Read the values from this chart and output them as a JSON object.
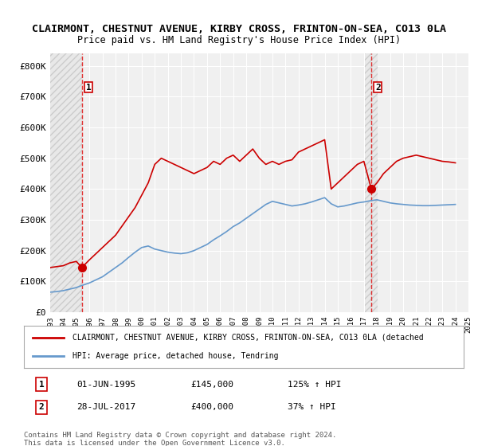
{
  "title_line1": "CLAIRMONT, CHESTNUT AVENUE, KIRBY CROSS, FRINTON-ON-SEA, CO13 0LA",
  "title_line2": "Price paid vs. HM Land Registry's House Price Index (HPI)",
  "ylabel": "",
  "bg_color": "#ffffff",
  "plot_bg_color": "#f0f0f0",
  "hatch_color": "#d8d8d8",
  "grid_color": "#ffffff",
  "red_line_color": "#cc0000",
  "blue_line_color": "#6699cc",
  "marker1_date_idx": 2.42,
  "marker1_value": 145000,
  "marker2_date_idx": 24.57,
  "marker2_value": 400000,
  "ylim_min": 0,
  "ylim_max": 840000,
  "ytick_values": [
    0,
    100000,
    200000,
    300000,
    400000,
    500000,
    600000,
    700000,
    800000
  ],
  "ytick_labels": [
    "£0",
    "£100K",
    "£200K",
    "£300K",
    "£400K",
    "£500K",
    "£600K",
    "£700K",
    "£800K"
  ],
  "legend_entry1": "CLAIRMONT, CHESTNUT AVENUE, KIRBY CROSS, FRINTON-ON-SEA, CO13 0LA (detached",
  "legend_entry2": "HPI: Average price, detached house, Tendring",
  "annotation1_label": "1",
  "annotation1_date": "01-JUN-1995",
  "annotation1_price": "£145,000",
  "annotation1_hpi": "125% ↑ HPI",
  "annotation2_label": "2",
  "annotation2_date": "28-JUL-2017",
  "annotation2_price": "£400,000",
  "annotation2_hpi": "37% ↑ HPI",
  "footnote": "Contains HM Land Registry data © Crown copyright and database right 2024.\nThis data is licensed under the Open Government Licence v3.0.",
  "x_years": [
    1993,
    1994,
    1995,
    1996,
    1997,
    1998,
    1999,
    2000,
    2001,
    2002,
    2003,
    2004,
    2005,
    2006,
    2007,
    2008,
    2009,
    2010,
    2011,
    2012,
    2013,
    2014,
    2015,
    2016,
    2017,
    2018,
    2019,
    2020,
    2021,
    2022,
    2023,
    2024,
    2025
  ],
  "red_x": [
    0.0,
    0.5,
    1.0,
    1.5,
    2.0,
    2.42,
    3.0,
    3.5,
    4.0,
    4.5,
    5.0,
    5.5,
    6.0,
    6.5,
    7.0,
    7.5,
    8.0,
    8.5,
    9.0,
    9.5,
    10.0,
    10.5,
    11.0,
    11.5,
    12.0,
    12.5,
    13.0,
    13.5,
    14.0,
    14.5,
    15.0,
    15.5,
    16.0,
    16.5,
    17.0,
    17.5,
    18.0,
    18.5,
    19.0,
    19.5,
    20.0,
    20.5,
    21.0,
    21.5,
    22.0,
    22.5,
    23.0,
    23.5,
    24.0,
    24.57,
    25.0,
    25.5,
    26.0,
    26.5,
    27.0,
    27.5,
    28.0,
    28.5,
    29.0,
    29.5,
    30.0,
    30.5,
    31.0
  ],
  "red_y": [
    145000,
    148000,
    151000,
    160000,
    165000,
    145000,
    170000,
    190000,
    210000,
    230000,
    250000,
    280000,
    310000,
    340000,
    380000,
    420000,
    480000,
    500000,
    490000,
    480000,
    470000,
    460000,
    450000,
    460000,
    470000,
    490000,
    480000,
    500000,
    510000,
    490000,
    510000,
    530000,
    500000,
    480000,
    490000,
    480000,
    490000,
    495000,
    520000,
    530000,
    540000,
    550000,
    560000,
    400000,
    420000,
    440000,
    460000,
    480000,
    490000,
    400000,
    420000,
    450000,
    470000,
    490000,
    500000,
    505000,
    510000,
    505000,
    500000,
    495000,
    490000,
    488000,
    485000
  ],
  "blue_x": [
    0.0,
    0.5,
    1.0,
    1.5,
    2.0,
    2.5,
    3.0,
    3.5,
    4.0,
    4.5,
    5.0,
    5.5,
    6.0,
    6.5,
    7.0,
    7.5,
    8.0,
    8.5,
    9.0,
    9.5,
    10.0,
    10.5,
    11.0,
    11.5,
    12.0,
    12.5,
    13.0,
    13.5,
    14.0,
    14.5,
    15.0,
    15.5,
    16.0,
    16.5,
    17.0,
    17.5,
    18.0,
    18.5,
    19.0,
    19.5,
    20.0,
    20.5,
    21.0,
    21.5,
    22.0,
    22.5,
    23.0,
    23.5,
    24.0,
    24.5,
    25.0,
    25.5,
    26.0,
    26.5,
    27.0,
    27.5,
    28.0,
    28.5,
    29.0,
    29.5,
    30.0,
    30.5,
    31.0
  ],
  "blue_y": [
    65000,
    67000,
    70000,
    75000,
    80000,
    88000,
    95000,
    105000,
    115000,
    130000,
    145000,
    160000,
    178000,
    195000,
    210000,
    215000,
    205000,
    200000,
    195000,
    192000,
    190000,
    193000,
    200000,
    210000,
    220000,
    235000,
    248000,
    262000,
    278000,
    290000,
    305000,
    320000,
    335000,
    350000,
    360000,
    355000,
    350000,
    345000,
    348000,
    352000,
    358000,
    365000,
    372000,
    352000,
    342000,
    345000,
    350000,
    355000,
    358000,
    362000,
    365000,
    360000,
    355000,
    352000,
    350000,
    348000,
    347000,
    346000,
    346000,
    347000,
    348000,
    349000,
    350000
  ]
}
